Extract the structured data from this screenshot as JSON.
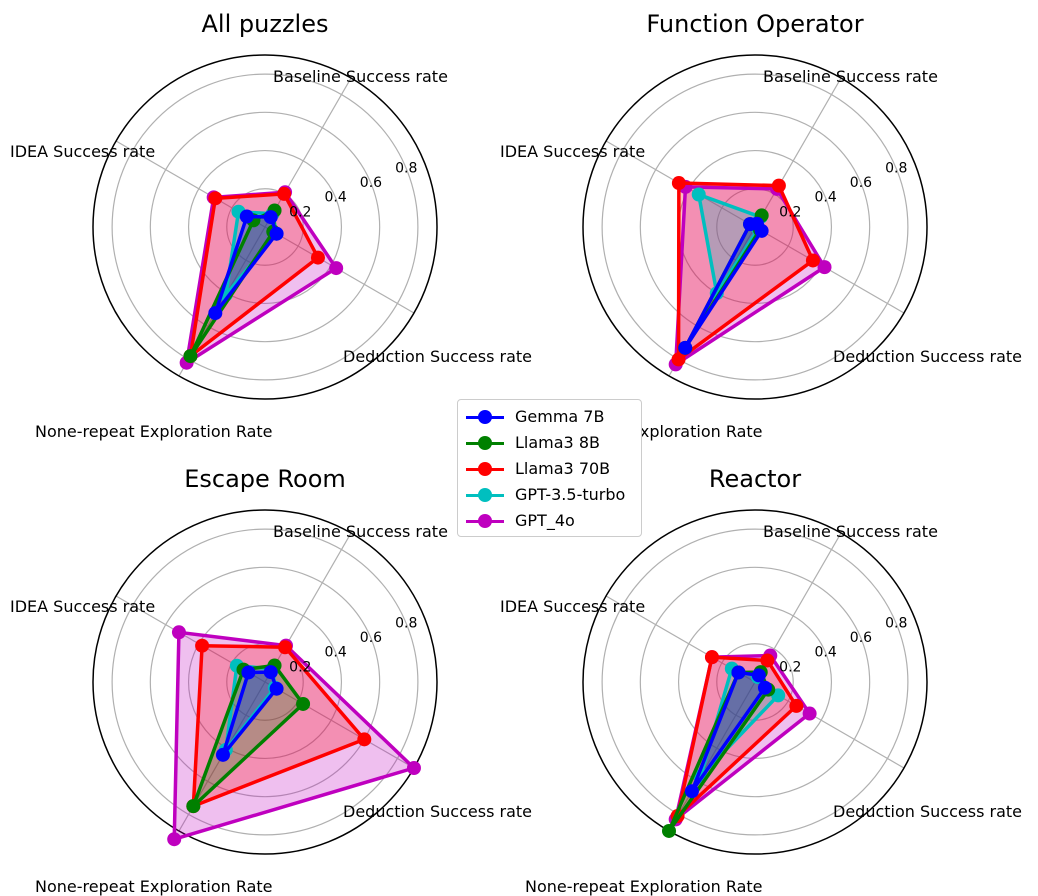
{
  "chart_data": {
    "type": "radar",
    "axes": [
      "Baseline Success rate",
      "Deduction Success rate",
      "None-repeat Exploration Rate",
      "IDEA Success rate"
    ],
    "r_ticks": [
      0.2,
      0.4,
      0.6,
      0.8
    ],
    "r_tick_labels": [
      "0.2",
      "0.4",
      "0.6",
      "0.8"
    ],
    "r_max": 0.9,
    "legend_location": "center",
    "series_colors": {
      "Gemma 7B": "#0000ff",
      "Llama3 8B": "#008000",
      "Llama3 70B": "#ff0000",
      "GPT-3.5-turbo": "#00bfbf",
      "GPT_4o": "#bf00bf"
    },
    "series_names": [
      "Gemma 7B",
      "Llama3 8B",
      "Llama3 70B",
      "GPT-3.5-turbo",
      "GPT_4o"
    ],
    "panels": [
      {
        "title": "All puzzles",
        "series": [
          {
            "name": "Gemma 7B",
            "values": [
              0.06,
              0.07,
              0.52,
              0.11
            ]
          },
          {
            "name": "Llama3 8B",
            "values": [
              0.1,
              0.05,
              0.78,
              0.07
            ]
          },
          {
            "name": "Llama3 70B",
            "values": [
              0.2,
              0.32,
              0.78,
              0.3
            ]
          },
          {
            "name": "GPT-3.5-turbo",
            "values": [
              0.08,
              0.07,
              0.41,
              0.16
            ]
          },
          {
            "name": "GPT_4o",
            "values": [
              0.21,
              0.43,
              0.82,
              0.31
            ]
          }
        ]
      },
      {
        "title": "Function Operator",
        "series": [
          {
            "name": "Gemma 7B",
            "values": [
              0.02,
              0.04,
              0.73,
              0.03
            ]
          },
          {
            "name": "Llama3 8B",
            "values": [
              0.07,
              0.03,
              0.73,
              0.03
            ]
          },
          {
            "name": "Llama3 70B",
            "values": [
              0.25,
              0.35,
              0.8,
              0.46
            ]
          },
          {
            "name": "GPT-3.5-turbo",
            "values": [
              0.06,
              0.02,
              0.4,
              0.34
            ]
          },
          {
            "name": "GPT_4o",
            "values": [
              0.23,
              0.42,
              0.83,
              0.42
            ]
          }
        ]
      },
      {
        "title": "Escape Room",
        "series": [
          {
            "name": "Gemma 7B",
            "values": [
              0.06,
              0.07,
              0.44,
              0.1
            ]
          },
          {
            "name": "Llama3 8B",
            "values": [
              0.1,
              0.23,
              0.75,
              0.13
            ]
          },
          {
            "name": "Llama3 70B",
            "values": [
              0.21,
              0.6,
              0.75,
              0.38
            ]
          },
          {
            "name": "GPT-3.5-turbo",
            "values": [
              0.08,
              0.06,
              0.41,
              0.17
            ]
          },
          {
            "name": "GPT_4o",
            "values": [
              0.22,
              0.9,
              0.95,
              0.52
            ]
          }
        ]
      },
      {
        "title": "Reactor",
        "series": [
          {
            "name": "Gemma 7B",
            "values": [
              0.04,
              0.06,
              0.66,
              0.1
            ]
          },
          {
            "name": "Llama3 8B",
            "values": [
              0.06,
              0.08,
              0.9,
              0.1
            ]
          },
          {
            "name": "Llama3 70B",
            "values": [
              0.13,
              0.25,
              0.81,
              0.26
            ]
          },
          {
            "name": "GPT-3.5-turbo",
            "values": [
              0.03,
              0.14,
              0.57,
              0.14
            ]
          },
          {
            "name": "GPT_4o",
            "values": [
              0.16,
              0.33,
              0.83,
              0.26
            ]
          }
        ]
      }
    ]
  }
}
